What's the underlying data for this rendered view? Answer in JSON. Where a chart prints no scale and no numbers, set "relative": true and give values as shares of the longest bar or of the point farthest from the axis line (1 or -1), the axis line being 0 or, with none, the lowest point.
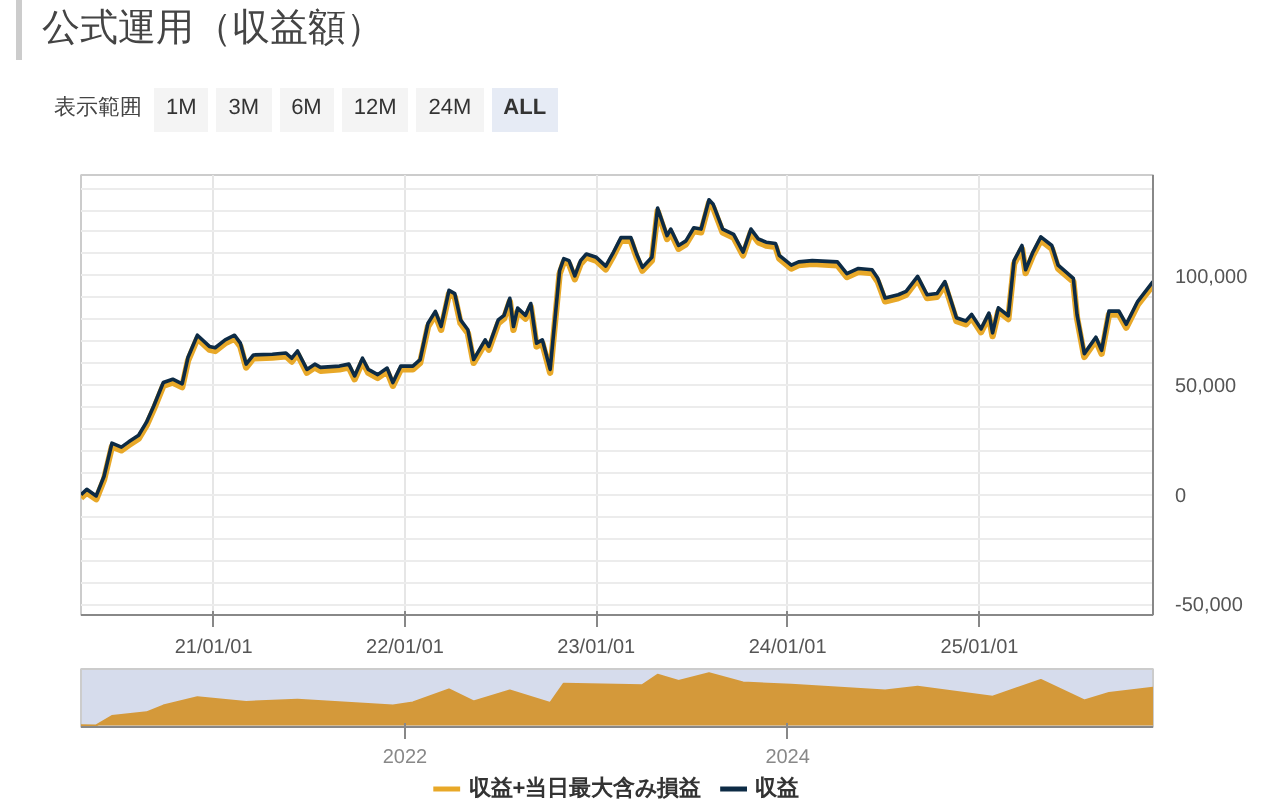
{
  "chart_data": [
    {
      "type": "line",
      "title": "公式運用（収益額）",
      "annotations": [
        "表示範囲",
        "1M",
        "3M",
        "6M",
        "12M",
        "24M",
        "ALL"
      ],
      "x": [
        "2020-04-23",
        "2020-05-04",
        "2020-05-22",
        "2020-06-06",
        "2020-06-21",
        "2020-07-09",
        "2020-07-23",
        "2020-08-11",
        "2020-08-26",
        "2020-09-09",
        "2020-09-27",
        "2020-10-15",
        "2020-11-02",
        "2020-11-13",
        "2020-12-01",
        "2020-12-24",
        "2021-01-04",
        "2021-01-23",
        "2021-02-10",
        "2021-02-21",
        "2021-03-04",
        "2021-03-18",
        "2021-04-23",
        "2021-05-19",
        "2021-05-30",
        "2021-06-10",
        "2021-06-28",
        "2021-07-13",
        "2021-07-24",
        "2021-08-29",
        "2021-09-16",
        "2021-09-27",
        "2021-10-12",
        "2021-10-23",
        "2021-11-10",
        "2021-11-28",
        "2021-12-09",
        "2021-12-24",
        "2022-01-16",
        "2022-01-30",
        "2022-02-14",
        "2022-02-28",
        "2022-03-11",
        "2022-03-26",
        "2022-04-06",
        "2022-04-17",
        "2022-05-01",
        "2022-05-12",
        "2022-06-03",
        "2022-06-10",
        "2022-06-28",
        "2022-07-09",
        "2022-07-20",
        "2022-07-27",
        "2022-08-04",
        "2022-08-19",
        "2022-08-29",
        "2022-09-09",
        "2022-09-20",
        "2022-10-05",
        "2022-10-23",
        "2022-10-31",
        "2022-11-10",
        "2022-11-21",
        "2022-12-02",
        "2022-12-13",
        "2023-01-01",
        "2023-01-19",
        "2023-02-03",
        "2023-02-17",
        "2023-03-08",
        "2023-03-19",
        "2023-03-30",
        "2023-04-17",
        "2023-04-28",
        "2023-05-16",
        "2023-05-23",
        "2023-06-07",
        "2023-06-21",
        "2023-07-06",
        "2023-07-20",
        "2023-08-04",
        "2023-08-12",
        "2023-08-30",
        "2023-09-20",
        "2023-10-08",
        "2023-10-23",
        "2023-11-06",
        "2023-11-21",
        "2023-12-09",
        "2023-12-16",
        "2024-01-08",
        "2024-01-22",
        "2024-02-17",
        "2024-04-05",
        "2024-04-23",
        "2024-05-15",
        "2024-06-10",
        "2024-06-21",
        "2024-07-05",
        "2024-07-30",
        "2024-08-14",
        "2024-09-05",
        "2024-09-23",
        "2024-10-12",
        "2024-10-27",
        "2024-11-18",
        "2024-12-06",
        "2024-12-17",
        "2025-01-04",
        "2025-01-19",
        "2025-01-26",
        "2025-02-06",
        "2025-02-25",
        "2025-03-08",
        "2025-03-23",
        "2025-03-30",
        "2025-04-13",
        "2025-04-28",
        "2025-05-19",
        "2025-05-31",
        "2025-06-29",
        "2025-07-06",
        "2025-07-20",
        "2025-08-11",
        "2025-08-22",
        "2025-09-05",
        "2025-09-24",
        "2025-10-08",
        "2025-10-30",
        "2025-11-28"
      ],
      "series": [
        {
          "name": "収益+当日最大含み損益",
          "color": "#e8a828",
          "values": [
            -1500,
            900,
            -2100,
            6900,
            22000,
            20200,
            22600,
            25600,
            31600,
            39100,
            49700,
            51200,
            49100,
            61100,
            71300,
            66200,
            65600,
            69200,
            71300,
            67700,
            58100,
            62300,
            62600,
            63200,
            60800,
            64100,
            55700,
            58100,
            56600,
            57200,
            58100,
            52700,
            60800,
            55700,
            53300,
            56300,
            49700,
            57200,
            57200,
            60200,
            76800,
            82200,
            75300,
            91800,
            90300,
            78300,
            73800,
            60200,
            69200,
            66200,
            78300,
            80400,
            88200,
            75300,
            83700,
            80400,
            85800,
            67700,
            69200,
            55700,
            100800,
            106300,
            105400,
            98400,
            105400,
            108400,
            106900,
            102900,
            109300,
            115900,
            115900,
            108400,
            102300,
            106900,
            129400,
            116800,
            119800,
            112300,
            114400,
            120400,
            119800,
            133200,
            131100,
            119800,
            117400,
            109300,
            119800,
            115300,
            113800,
            113200,
            107800,
            103300,
            104800,
            105400,
            104800,
            99400,
            101800,
            101200,
            97300,
            88300,
            89800,
            91300,
            98200,
            89800,
            90400,
            95800,
            79300,
            77800,
            80800,
            74200,
            81400,
            72400,
            83800,
            80200,
            105400,
            112300,
            101200,
            109300,
            116200,
            112300,
            103300,
            97300,
            80800,
            62900,
            70400,
            64400,
            82300,
            82300,
            76300,
            86800,
            95800
          ]
        },
        {
          "name": "収益",
          "color": "#0d2b45",
          "values": [
            0,
            2400,
            -600,
            8400,
            23500,
            21700,
            24100,
            27100,
            33100,
            40600,
            51200,
            52700,
            50600,
            62600,
            72800,
            67700,
            67100,
            70700,
            72800,
            69200,
            59600,
            63800,
            64100,
            64700,
            62300,
            65600,
            57200,
            59600,
            58100,
            58700,
            59600,
            54200,
            62300,
            57200,
            54800,
            57800,
            51200,
            58700,
            58700,
            61700,
            78300,
            83700,
            76800,
            93300,
            91800,
            79800,
            75300,
            61700,
            70700,
            67700,
            79800,
            81900,
            89700,
            76800,
            85200,
            81900,
            87300,
            69200,
            70700,
            57200,
            102300,
            107800,
            106900,
            99900,
            106900,
            109900,
            108400,
            104400,
            110800,
            117400,
            117400,
            109900,
            103800,
            108400,
            130900,
            118300,
            121300,
            113800,
            115900,
            121900,
            121300,
            134700,
            132600,
            121300,
            118900,
            110800,
            121300,
            116800,
            115300,
            114700,
            109300,
            104800,
            106300,
            106900,
            106300,
            100900,
            103300,
            102700,
            98800,
            89800,
            91300,
            92800,
            99700,
            91300,
            91900,
            97300,
            80800,
            79300,
            82300,
            75700,
            82900,
            73900,
            85300,
            81700,
            106900,
            113800,
            102700,
            110800,
            117700,
            113800,
            104800,
            98800,
            82300,
            64400,
            71900,
            65900,
            83800,
            83800,
            77800,
            88300,
            97300
          ]
        }
      ],
      "xlim": [
        "2020-04-23",
        "2025-11-28"
      ],
      "xticks": [
        {
          "value": "2021-01-01",
          "label": "21/01/01"
        },
        {
          "value": "2022-01-01",
          "label": "22/01/01"
        },
        {
          "value": "2023-01-01",
          "label": "23/01/01"
        },
        {
          "value": "2024-01-01",
          "label": "24/01/01"
        },
        {
          "value": "2025-01-01",
          "label": "25/01/01"
        }
      ],
      "ylim": [
        -55000,
        146000
      ],
      "yticks": [
        {
          "value": -50000,
          "label": "-50,000"
        },
        {
          "value": -40000,
          "label": null
        },
        {
          "value": -30000,
          "label": null
        },
        {
          "value": -20000,
          "label": null
        },
        {
          "value": -10000,
          "label": null
        },
        0,
        {
          "value": 10000,
          "label": null
        },
        {
          "value": 20000,
          "label": null
        },
        {
          "value": 30000,
          "label": null
        },
        {
          "value": 40000,
          "label": null
        },
        {
          "value": 50000,
          "label": "50,000"
        },
        {
          "value": 60000,
          "label": null
        },
        {
          "value": 70000,
          "label": null
        },
        {
          "value": 80000,
          "label": null
        },
        {
          "value": 90000,
          "label": null
        },
        {
          "value": 100000,
          "label": "100,000"
        },
        {
          "value": 110000,
          "label": null
        },
        {
          "value": 120000,
          "label": null
        },
        {
          "value": 130000,
          "label": null
        },
        {
          "value": 140000,
          "label": null
        }
      ],
      "grid": true,
      "legend": "bottom"
    },
    {
      "type": "area",
      "relative": true,
      "tick_labels": "x",
      "x": [
        "2020-04-23",
        "2020-05-22",
        "2020-06-21",
        "2020-08-26",
        "2020-09-27",
        "2020-12-01",
        "2021-03-04",
        "2021-06-10",
        "2021-12-09",
        "2022-01-16",
        "2022-03-26",
        "2022-05-12",
        "2022-07-20",
        "2022-10-05",
        "2022-10-31",
        "2023-03-30",
        "2023-04-28",
        "2023-06-07",
        "2023-08-04",
        "2023-10-08",
        "2024-01-08",
        "2024-07-05",
        "2024-09-05",
        "2025-01-26",
        "2025-04-28",
        "2025-07-20",
        "2025-09-05",
        "2025-11-28"
      ],
      "series": [
        {
          "color": "#d4993a",
          "values": [
            0.004,
            0,
            0.18,
            0.25,
            0.38,
            0.54,
            0.45,
            0.49,
            0.38,
            0.44,
            0.69,
            0.46,
            0.67,
            0.43,
            0.8,
            0.77,
            0.97,
            0.85,
            1,
            0.82,
            0.78,
            0.67,
            0.74,
            0.55,
            0.87,
            0.48,
            0.62,
            0.72
          ]
        }
      ],
      "xlim": [
        "2020-04-23",
        "2025-11-28"
      ],
      "xticks": [
        {
          "value": "2022-01-01",
          "label": "2022"
        },
        {
          "value": "2024-01-01",
          "label": "2024"
        }
      ]
    }
  ]
}
